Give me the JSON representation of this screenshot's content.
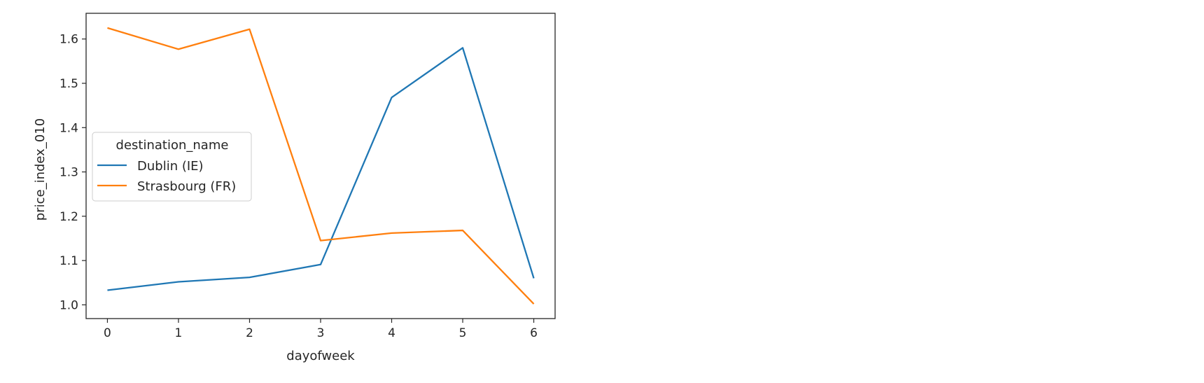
{
  "chart_data": {
    "type": "line",
    "x": [
      0,
      1,
      2,
      3,
      4,
      5,
      6
    ],
    "series": [
      {
        "name": "Dublin (IE)",
        "color": "#1f77b4",
        "values": [
          1.033,
          1.052,
          1.062,
          1.091,
          1.468,
          1.58,
          1.06
        ]
      },
      {
        "name": "Strasbourg (FR)",
        "color": "#ff7f0e",
        "values": [
          1.625,
          1.577,
          1.622,
          1.145,
          1.162,
          1.168,
          1.002
        ]
      }
    ],
    "title": "",
    "xlabel": "dayofweek",
    "ylabel": "price_index_010",
    "xlim": [
      -0.3,
      6.3
    ],
    "ylim": [
      0.969,
      1.658
    ],
    "xticks": [
      "0",
      "1",
      "2",
      "3",
      "4",
      "5",
      "6"
    ],
    "yticks": [
      "1.0",
      "1.1",
      "1.2",
      "1.3",
      "1.4",
      "1.5",
      "1.6"
    ],
    "grid": false,
    "legend": {
      "title": "destination_name",
      "placement": "center-left"
    }
  }
}
